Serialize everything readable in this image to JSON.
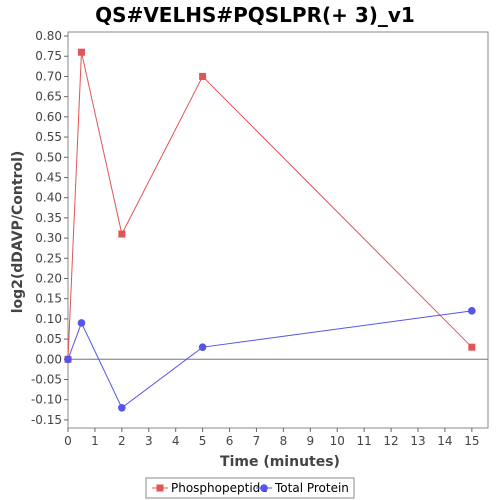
{
  "chart_data": {
    "type": "line",
    "title": "QS#VELHS#PQSLPR(+ 3)_v1",
    "xlabel": "Time (minutes)",
    "ylabel": "log2(dDAVP/Control)",
    "xlim": [
      0,
      15.6
    ],
    "ylim": [
      -0.17,
      0.81
    ],
    "xticks": [
      0,
      1,
      2,
      3,
      4,
      5,
      6,
      7,
      8,
      9,
      10,
      11,
      12,
      13,
      14,
      15
    ],
    "yticks": [
      -0.15,
      -0.1,
      -0.05,
      0.0,
      0.05,
      0.1,
      0.15,
      0.2,
      0.25,
      0.3,
      0.35,
      0.4,
      0.45,
      0.5,
      0.55,
      0.6,
      0.65,
      0.7,
      0.75,
      0.8
    ],
    "zero_line": true,
    "grid": false,
    "legend_position": "bottom",
    "series": [
      {
        "name": "Phosphopeptide",
        "color": "#e05555",
        "marker": "square",
        "x": [
          0,
          0.5,
          2,
          5,
          15
        ],
        "y": [
          0.0,
          0.76,
          0.31,
          0.7,
          0.03
        ]
      },
      {
        "name": "Total Protein",
        "color": "#5555e8",
        "marker": "circle",
        "x": [
          0,
          0.5,
          2,
          5,
          15
        ],
        "y": [
          0.0,
          0.09,
          -0.12,
          0.03,
          0.12
        ]
      }
    ]
  }
}
